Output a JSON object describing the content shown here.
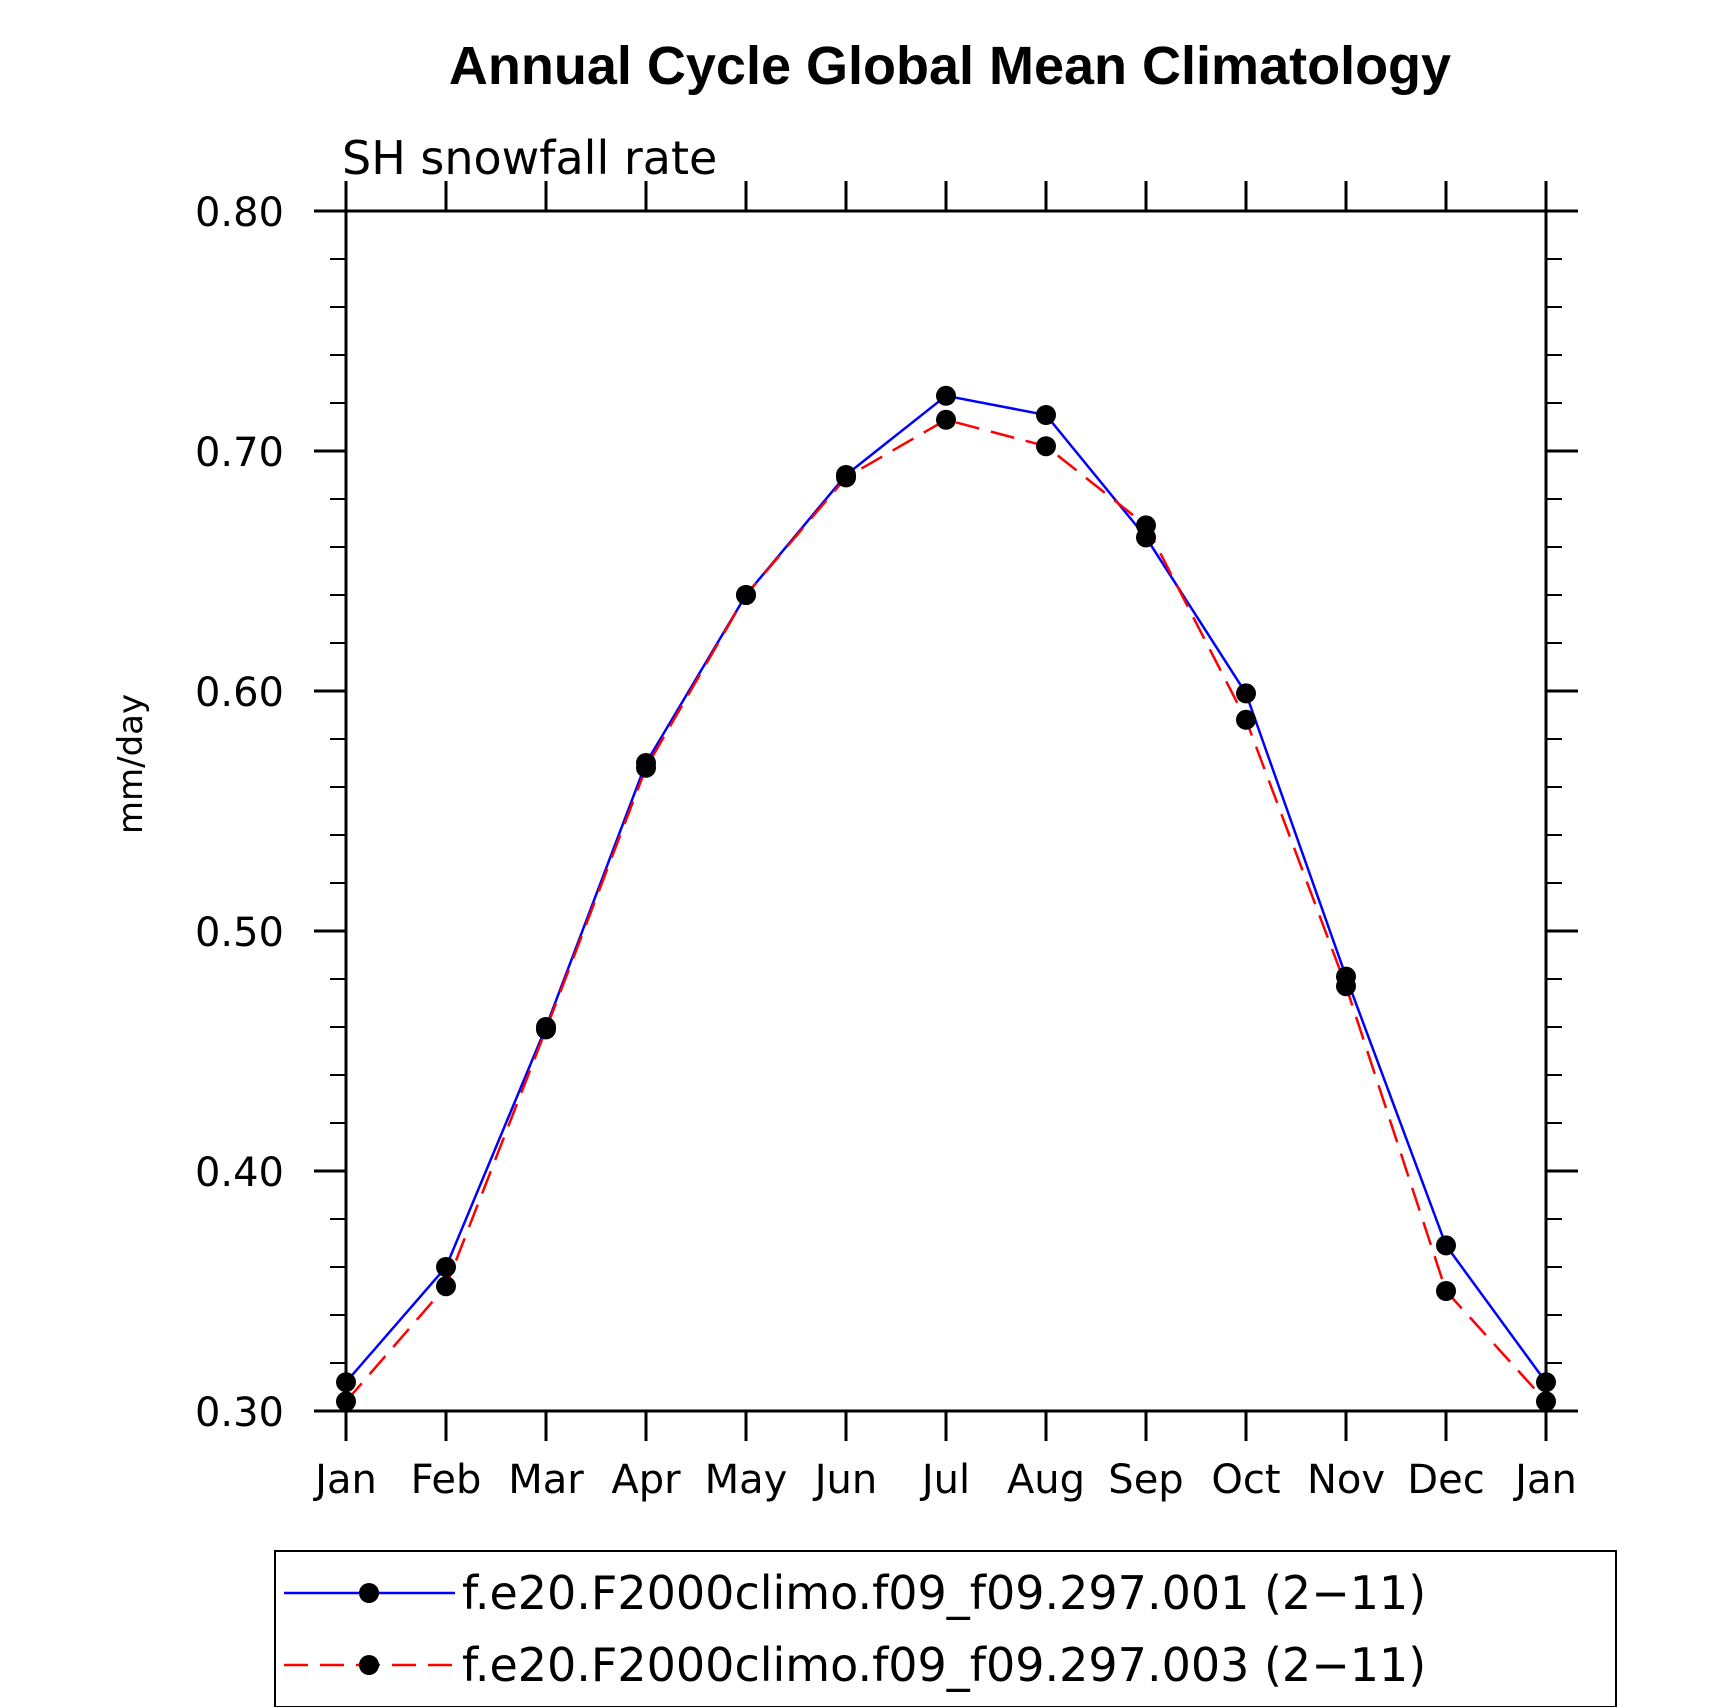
{
  "chart_data": {
    "type": "line",
    "title": "Annual Cycle Global Mean Climatology",
    "subtitle": "SH snowfall rate",
    "xlabel": "",
    "ylabel": "mm/day",
    "categories": [
      "Jan",
      "Feb",
      "Mar",
      "Apr",
      "May",
      "Jun",
      "Jul",
      "Aug",
      "Sep",
      "Oct",
      "Nov",
      "Dec",
      "Jan"
    ],
    "ylim": [
      0.3,
      0.8
    ],
    "yticks": [
      "0.30",
      "0.40",
      "0.50",
      "0.60",
      "0.70",
      "0.80"
    ],
    "ytick_values": [
      0.3,
      0.4,
      0.5,
      0.6,
      0.7,
      0.8
    ],
    "y_minor_step": 0.02,
    "marker": "filled-circle",
    "grid": false,
    "legend_position": "bottom",
    "series": [
      {
        "name": "f.e20.F2000climo.f09_f09.297.001 (2−11)",
        "color": "#0000ff",
        "line_style": "solid",
        "values": [
          0.312,
          0.36,
          0.46,
          0.57,
          0.64,
          0.69,
          0.723,
          0.715,
          0.664,
          0.599,
          0.481,
          0.369,
          0.312
        ]
      },
      {
        "name": "f.e20.F2000climo.f09_f09.297.003 (2−11)",
        "color": "#ff0000",
        "line_style": "dashed",
        "values": [
          0.304,
          0.352,
          0.459,
          0.568,
          0.64,
          0.689,
          0.713,
          0.702,
          0.669,
          0.588,
          0.477,
          0.35,
          0.304
        ]
      }
    ]
  }
}
